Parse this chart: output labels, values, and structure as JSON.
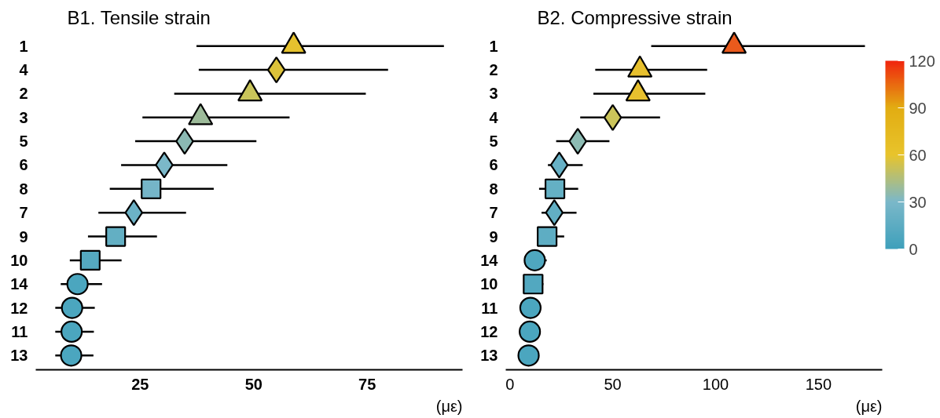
{
  "chart_data": [
    {
      "type": "scatter",
      "orientation": "horizontal",
      "title": "B1. Tensile strain",
      "xlabel": "(με)",
      "categories": [
        "1",
        "4",
        "2",
        "3",
        "5",
        "6",
        "8",
        "7",
        "9",
        "10",
        "14",
        "12",
        "11",
        "13"
      ],
      "xlim": [
        2,
        96
      ],
      "xticks": [
        25,
        50,
        75
      ],
      "series": [
        {
          "marker": "triangle",
          "values": [
            58.8,
            null,
            49.2,
            38.3,
            null,
            null,
            null,
            null,
            null,
            null,
            null,
            null,
            null,
            null
          ],
          "errors": [
            [
              37.4,
              91.9
            ],
            null,
            [
              32.5,
              74.7
            ],
            [
              25.5,
              57.9
            ],
            null,
            null,
            null,
            null,
            null,
            null,
            null,
            null,
            null,
            null
          ],
          "colors": [
            "#e6c22e",
            null,
            "#c9c55a",
            "#9dbb9a",
            null,
            null,
            null,
            null,
            null,
            null,
            null,
            null,
            null,
            null
          ]
        },
        {
          "marker": "diamond",
          "values": [
            null,
            55,
            null,
            null,
            34.8,
            30.3,
            null,
            23.6,
            null,
            null,
            null,
            null,
            null,
            null
          ],
          "errors": [
            null,
            [
              37.9,
              79.6
            ],
            null,
            null,
            [
              23.9,
              50.6
            ],
            [
              20.8,
              44.2
            ],
            null,
            [
              15.8,
              35.1
            ],
            null,
            null,
            null,
            null,
            null,
            null
          ],
          "colors": [
            null,
            "#dcc23a",
            null,
            null,
            "#8bb9b3",
            "#7bb8c9",
            null,
            "#6cb2c6",
            null,
            null,
            null,
            null,
            null,
            null
          ]
        },
        {
          "marker": "square",
          "values": [
            null,
            null,
            null,
            null,
            null,
            null,
            27.4,
            null,
            19.6,
            14,
            null,
            null,
            null,
            null
          ],
          "errors": [
            null,
            null,
            null,
            null,
            null,
            null,
            [
              18.3,
              41.2
            ],
            null,
            [
              13.5,
              28.7
            ],
            [
              9.5,
              20.9
            ],
            null,
            null,
            null,
            null
          ],
          "colors": [
            null,
            null,
            null,
            null,
            null,
            null,
            "#75b5c8",
            null,
            "#63afc3",
            "#55a9c0",
            null,
            null,
            null,
            null
          ]
        },
        {
          "marker": "circle",
          "values": [
            null,
            null,
            null,
            null,
            null,
            null,
            null,
            null,
            null,
            null,
            11.2,
            10,
            9.9,
            9.8
          ],
          "errors": [
            null,
            null,
            null,
            null,
            null,
            null,
            null,
            null,
            null,
            null,
            [
              7.5,
              16.6
            ],
            [
              6.3,
              15
            ],
            [
              6.3,
              14.8
            ],
            [
              6.3,
              14.7
            ]
          ],
          "colors": [
            null,
            null,
            null,
            null,
            null,
            null,
            null,
            null,
            null,
            null,
            "#4ba6bf",
            "#4ba6bf",
            "#4ba6bf",
            "#4ba6bf"
          ]
        }
      ]
    },
    {
      "type": "scatter",
      "orientation": "horizontal",
      "title": "B2. Compressive strain",
      "xlabel": "(με)",
      "categories": [
        "1",
        "2",
        "3",
        "4",
        "5",
        "6",
        "8",
        "7",
        "9",
        "14",
        "10",
        "11",
        "12",
        "13"
      ],
      "xlim": [
        -2,
        181
      ],
      "xticks": [
        0,
        50,
        100,
        150
      ],
      "clim": [
        0,
        120
      ],
      "cticks": [
        0,
        30,
        60,
        90,
        120
      ],
      "series": [
        {
          "marker": "triangle",
          "values": [
            109,
            63.2,
            62.3,
            null,
            null,
            null,
            null,
            null,
            null,
            null,
            null,
            null,
            null,
            null
          ],
          "errors": [
            [
              68.7,
              172.6
            ],
            [
              41.5,
              95.9
            ],
            [
              40.6,
              95
            ],
            null,
            null,
            null,
            null,
            null,
            null,
            null,
            null,
            null,
            null,
            null
          ],
          "colors": [
            "#ea5a1c",
            "#e7c02e",
            "#e7c02e",
            null,
            null,
            null,
            null,
            null,
            null,
            null,
            null,
            null,
            null,
            null
          ]
        },
        {
          "marker": "diamond",
          "values": [
            null,
            null,
            null,
            50,
            33,
            24,
            null,
            21.6,
            null,
            null,
            null,
            null,
            null,
            null
          ],
          "errors": [
            null,
            null,
            null,
            [
              34.2,
              73
            ],
            [
              22.5,
              48.4
            ],
            [
              18.5,
              35.4
            ],
            null,
            [
              15.4,
              32.4
            ],
            null,
            null,
            null,
            null,
            null,
            null
          ],
          "colors": [
            null,
            null,
            null,
            "#cbc45a",
            "#8dbcb4",
            "#67b1c6",
            null,
            "#62afc4",
            null,
            null,
            null,
            null,
            null,
            null
          ]
        },
        {
          "marker": "square",
          "values": [
            null,
            null,
            null,
            null,
            null,
            null,
            21.9,
            null,
            18.1,
            null,
            11.3,
            null,
            null,
            null
          ],
          "errors": [
            null,
            null,
            null,
            null,
            null,
            null,
            [
              14.2,
              33.2
            ],
            null,
            [
              13.5,
              26.4
            ],
            null,
            [
              11.3,
              16.3
            ],
            null,
            null,
            null
          ],
          "colors": [
            null,
            null,
            null,
            null,
            null,
            null,
            "#64b0c4",
            null,
            "#5eadc3",
            null,
            "#52a8c0",
            null,
            null,
            null
          ]
        },
        {
          "marker": "circle",
          "values": [
            null,
            null,
            null,
            null,
            null,
            null,
            null,
            null,
            null,
            12.1,
            null,
            10,
            9.7,
            9.1
          ],
          "errors": [
            null,
            null,
            null,
            null,
            null,
            null,
            null,
            null,
            null,
            [
              12.1,
              17.9
            ],
            null,
            [
              10,
              14.5
            ],
            [
              9.7,
              14.4
            ],
            [
              9.1,
              13.4
            ]
          ],
          "colors": [
            null,
            null,
            null,
            null,
            null,
            null,
            null,
            null,
            null,
            "#4fa7bf",
            null,
            "#4ba6bf",
            "#4ba6bf",
            "#4ba6bf"
          ]
        }
      ]
    }
  ]
}
